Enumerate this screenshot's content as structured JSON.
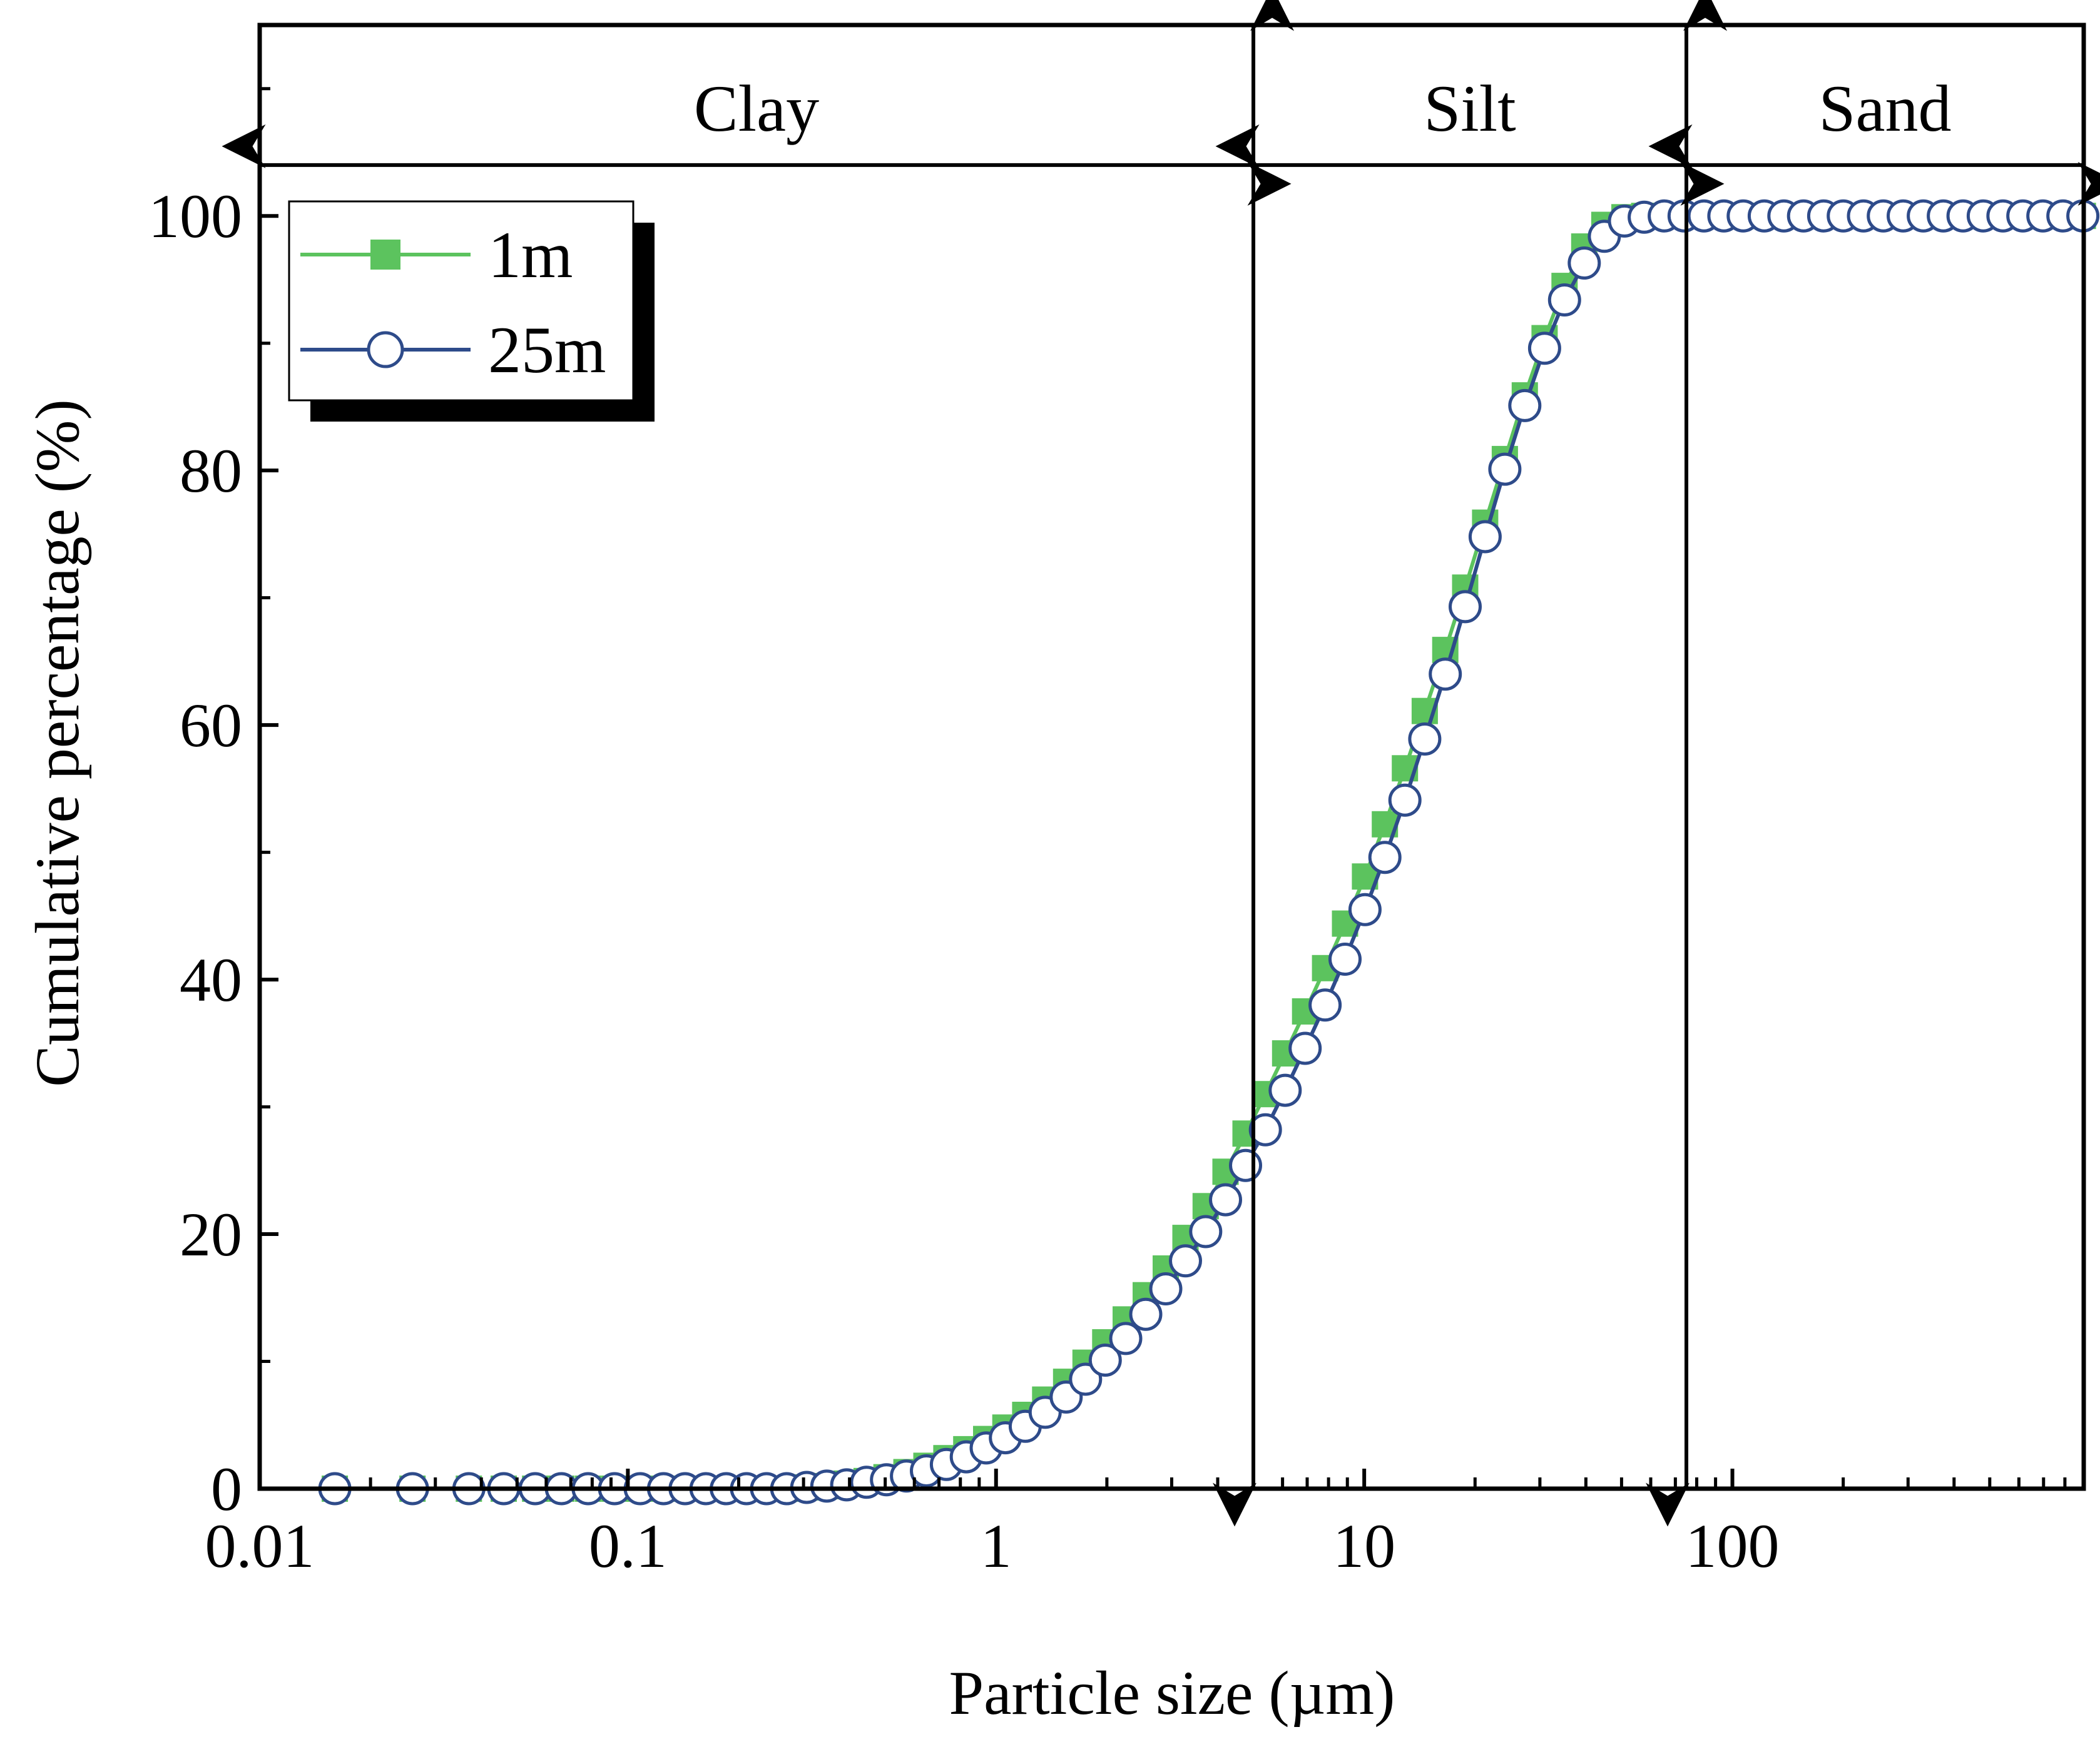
{
  "chart_data": {
    "type": "line",
    "xlabel": "Particle size (µm)",
    "ylabel": "Cumulative percentage (%)",
    "xscale": "log",
    "xlim": [
      0.01,
      900
    ],
    "ylim": [
      0,
      115
    ],
    "x_ticks": [
      {
        "value": 0.01,
        "label": "0.01"
      },
      {
        "value": 0.1,
        "label": "0.1"
      },
      {
        "value": 1,
        "label": "1"
      },
      {
        "value": 10,
        "label": "10"
      },
      {
        "value": 100,
        "label": "100"
      }
    ],
    "y_ticks": [
      {
        "value": 0,
        "label": "0"
      },
      {
        "value": 20,
        "label": "20"
      },
      {
        "value": 40,
        "label": "40"
      },
      {
        "value": 60,
        "label": "60"
      },
      {
        "value": 80,
        "label": "80"
      },
      {
        "value": 100,
        "label": "100"
      }
    ],
    "y_minor_ticks": [
      10,
      30,
      50,
      70,
      90,
      110
    ],
    "boundaries": [
      5,
      75
    ],
    "regions": [
      {
        "label": "Clay",
        "from": 0.01,
        "to": 5
      },
      {
        "label": "Silt",
        "from": 5,
        "to": 75
      },
      {
        "label": "Sand",
        "from": 75,
        "to": 900
      }
    ],
    "region_arrow_y": 104,
    "legend_position": "top-left",
    "x": [
      0.016,
      0.026,
      0.037,
      0.046,
      0.056,
      0.066,
      0.078,
      0.092,
      0.108,
      0.125,
      0.143,
      0.163,
      0.185,
      0.21,
      0.238,
      0.27,
      0.306,
      0.347,
      0.393,
      0.445,
      0.504,
      0.571,
      0.647,
      0.733,
      0.83,
      0.94,
      1.06,
      1.2,
      1.36,
      1.55,
      1.75,
      1.98,
      2.25,
      2.55,
      2.89,
      3.27,
      3.71,
      4.2,
      4.76,
      5.39,
      6.1,
      6.91,
      7.83,
      8.87,
      10.05,
      11.38,
      12.9,
      14.6,
      16.6,
      18.8,
      21.3,
      24.1,
      27.3,
      30.9,
      35.0,
      39.6,
      44.9,
      50.9,
      57.6,
      65.3,
      73.9,
      83.7,
      94.8,
      107,
      122,
      138,
      156,
      177,
      200,
      227,
      257,
      291,
      330,
      374,
      423,
      480,
      543,
      615,
      697,
      790,
      895
    ],
    "series": [
      {
        "name": "1m",
        "color": "#5cc35e",
        "marker": "square",
        "values": [
          0,
          0,
          0,
          0,
          0,
          0,
          0,
          0,
          0,
          0,
          0,
          0,
          0,
          0,
          0,
          0,
          0.1,
          0.2,
          0.4,
          0.6,
          0.9,
          1.3,
          1.8,
          2.4,
          3.1,
          3.9,
          4.8,
          5.8,
          7.0,
          8.4,
          9.9,
          11.5,
          13.3,
          15.2,
          17.3,
          19.7,
          22.2,
          24.9,
          27.9,
          31.0,
          34.2,
          37.5,
          40.9,
          44.4,
          48.1,
          52.2,
          56.6,
          61.1,
          65.9,
          70.8,
          75.9,
          80.9,
          85.9,
          90.4,
          94.5,
          97.6,
          99.3,
          99.9,
          100,
          100,
          100,
          100,
          100,
          100,
          100,
          100,
          100,
          100,
          100,
          100,
          100,
          100,
          100,
          100,
          100,
          100,
          100,
          100,
          100,
          100,
          100
        ]
      },
      {
        "name": "25m",
        "color": "#2e4b8a",
        "marker": "circle",
        "values": [
          0,
          0,
          0,
          0,
          0,
          0,
          0,
          0,
          0,
          0,
          0,
          0,
          0,
          0,
          0,
          0,
          0.1,
          0.2,
          0.3,
          0.5,
          0.7,
          1.0,
          1.4,
          1.9,
          2.5,
          3.2,
          4.0,
          4.9,
          6.0,
          7.2,
          8.6,
          10.1,
          11.8,
          13.7,
          15.7,
          17.9,
          20.2,
          22.7,
          25.4,
          28.2,
          31.3,
          34.6,
          38.0,
          41.6,
          45.5,
          49.6,
          54.1,
          58.9,
          64.0,
          69.3,
          74.8,
          80.1,
          85.1,
          89.6,
          93.4,
          96.3,
          98.4,
          99.6,
          99.9,
          100,
          100,
          100,
          100,
          100,
          100,
          100,
          100,
          100,
          100,
          100,
          100,
          100,
          100,
          100,
          100,
          100,
          100,
          100,
          100,
          100,
          100
        ]
      }
    ]
  }
}
